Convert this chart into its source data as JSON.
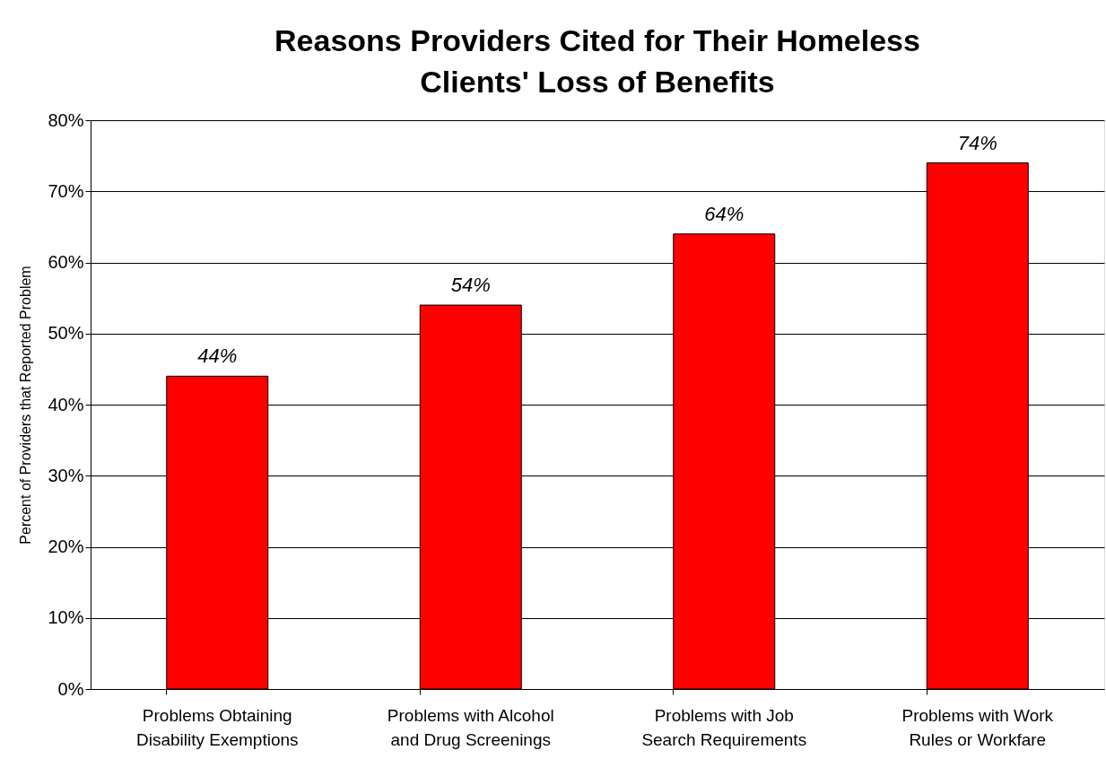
{
  "chart_data": {
    "type": "bar",
    "title": "Reasons Providers Cited for Their Homeless\nClients' Loss of Benefits",
    "ylabel": "Percent of Providers that Reported Problem",
    "categories": [
      "Problems Obtaining\nDisability Exemptions",
      "Problems with Alcohol\nand Drug Screenings",
      "Problems with Job\nSearch Requirements",
      "Problems with Work\nRules or Workfare"
    ],
    "values": [
      44,
      54,
      64,
      74
    ],
    "value_labels": [
      "44%",
      "54%",
      "64%",
      "74%"
    ],
    "color": "#ff0000",
    "ylim": [
      0,
      80
    ],
    "yticks": [
      {
        "value": 0,
        "label": "0%"
      },
      {
        "value": 10,
        "label": "10%"
      },
      {
        "value": 20,
        "label": "20%"
      },
      {
        "value": 30,
        "label": "30%"
      },
      {
        "value": 40,
        "label": "40%"
      },
      {
        "value": 50,
        "label": "50%"
      },
      {
        "value": 60,
        "label": "60%"
      },
      {
        "value": 70,
        "label": "70%"
      },
      {
        "value": 80,
        "label": "80%"
      }
    ],
    "grid": "y"
  }
}
